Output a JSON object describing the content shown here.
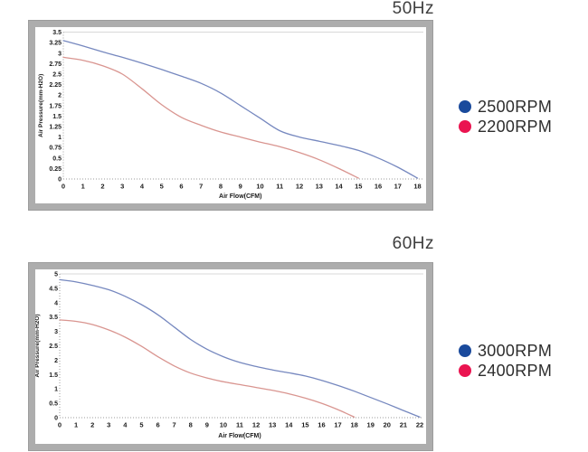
{
  "page": {
    "background": "#ffffff"
  },
  "colors": {
    "curve_blue": "#7688bf",
    "curve_red": "#d99590",
    "legend_blue": "#1a4a9c",
    "legend_red": "#ea1450",
    "grid_line": "#d8d8d8",
    "axis_dotted": "#9b9b9b",
    "tick_text": "#1a1a1a",
    "title_text": "#3e3e3e",
    "frame_border": "#adadad"
  },
  "chart_data": [
    {
      "type": "line",
      "title": "50Hz",
      "xlabel": "Air Flow(CFM)",
      "ylabel": "Air Pressure(mm-H2O)",
      "xlim": [
        0,
        18
      ],
      "ylim": [
        0,
        3.5
      ],
      "grid": "top-line-only",
      "legend_position": "right",
      "x_tick_labels": [
        "0",
        "1",
        "2",
        "3",
        "4",
        "5",
        "6",
        "7",
        "8",
        "9",
        "10",
        "11",
        "12",
        "13",
        "14",
        "15",
        "16",
        "17",
        "18"
      ],
      "x_ticks": [
        0,
        1,
        2,
        3,
        4,
        5,
        6,
        7,
        8,
        9,
        10,
        11,
        12,
        13,
        14,
        15,
        16,
        17,
        18
      ],
      "y_tick_labels": [
        "0",
        "0.25",
        "0.5",
        "0.75",
        "1",
        "1.25",
        "1.5",
        "1.75",
        "2",
        "2.25",
        "2.5",
        "2.75",
        "3",
        "3.25",
        "3.5"
      ],
      "y_ticks": [
        0,
        0.25,
        0.5,
        0.75,
        1,
        1.25,
        1.5,
        1.75,
        2,
        2.25,
        2.5,
        2.75,
        3,
        3.25,
        3.5
      ],
      "legend": [
        {
          "label": "2500RPM",
          "color": "#1a4a9c"
        },
        {
          "label": "2200RPM",
          "color": "#ea1450"
        }
      ],
      "series": [
        {
          "name": "2500RPM",
          "color": "#7688bf",
          "points": [
            [
              0,
              3.3
            ],
            [
              1,
              3.17
            ],
            [
              2,
              3.03
            ],
            [
              3,
              2.9
            ],
            [
              4,
              2.76
            ],
            [
              5,
              2.61
            ],
            [
              6,
              2.45
            ],
            [
              7,
              2.28
            ],
            [
              8,
              2.05
            ],
            [
              9,
              1.75
            ],
            [
              10,
              1.45
            ],
            [
              11,
              1.15
            ],
            [
              12,
              1.0
            ],
            [
              13,
              0.9
            ],
            [
              14,
              0.8
            ],
            [
              15,
              0.68
            ],
            [
              16,
              0.5
            ],
            [
              17,
              0.28
            ],
            [
              18,
              0.02
            ]
          ]
        },
        {
          "name": "2200RPM",
          "color": "#d99590",
          "points": [
            [
              0,
              2.9
            ],
            [
              1,
              2.83
            ],
            [
              2,
              2.7
            ],
            [
              3,
              2.5
            ],
            [
              4,
              2.15
            ],
            [
              5,
              1.77
            ],
            [
              6,
              1.47
            ],
            [
              7,
              1.28
            ],
            [
              8,
              1.12
            ],
            [
              9,
              1.0
            ],
            [
              10,
              0.88
            ],
            [
              11,
              0.77
            ],
            [
              12,
              0.63
            ],
            [
              13,
              0.46
            ],
            [
              14,
              0.25
            ],
            [
              15,
              0.02
            ]
          ]
        }
      ]
    },
    {
      "type": "line",
      "title": "60Hz",
      "xlabel": "Air Flow(CFM)",
      "ylabel": "Air Pressure(mm-H2O)",
      "xlim": [
        0,
        22
      ],
      "ylim": [
        0,
        5
      ],
      "grid": "top-line-only",
      "legend_position": "right",
      "x_tick_labels": [
        "0",
        "1",
        "2",
        "3",
        "4",
        "5",
        "6",
        "7",
        "8",
        "9",
        "10",
        "11",
        "12",
        "13",
        "14",
        "15",
        "16",
        "17",
        "18",
        "19",
        "20",
        "21",
        "22"
      ],
      "x_ticks": [
        0,
        1,
        2,
        3,
        4,
        5,
        6,
        7,
        8,
        9,
        10,
        11,
        12,
        13,
        14,
        15,
        16,
        17,
        18,
        19,
        20,
        21,
        22
      ],
      "y_tick_labels": [
        "0",
        "0.5",
        "1",
        "1.5",
        "2",
        "2.5",
        "3",
        "3.5",
        "4",
        "4.5",
        "5"
      ],
      "y_ticks": [
        0,
        0.5,
        1,
        1.5,
        2,
        2.5,
        3,
        3.5,
        4,
        4.5,
        5
      ],
      "legend": [
        {
          "label": "3000RPM",
          "color": "#1a4a9c"
        },
        {
          "label": "2400RPM",
          "color": "#ea1450"
        }
      ],
      "series": [
        {
          "name": "3000RPM",
          "color": "#7688bf",
          "points": [
            [
              0,
              4.8
            ],
            [
              1,
              4.72
            ],
            [
              2,
              4.6
            ],
            [
              3,
              4.45
            ],
            [
              4,
              4.22
            ],
            [
              5,
              3.93
            ],
            [
              6,
              3.58
            ],
            [
              7,
              3.15
            ],
            [
              8,
              2.72
            ],
            [
              9,
              2.38
            ],
            [
              10,
              2.12
            ],
            [
              11,
              1.92
            ],
            [
              12,
              1.78
            ],
            [
              13,
              1.66
            ],
            [
              14,
              1.56
            ],
            [
              15,
              1.45
            ],
            [
              16,
              1.3
            ],
            [
              17,
              1.12
            ],
            [
              18,
              0.92
            ],
            [
              19,
              0.7
            ],
            [
              20,
              0.48
            ],
            [
              21,
              0.25
            ],
            [
              22,
              0.02
            ]
          ]
        },
        {
          "name": "2400RPM",
          "color": "#d99590",
          "points": [
            [
              0,
              3.4
            ],
            [
              1,
              3.35
            ],
            [
              2,
              3.24
            ],
            [
              3,
              3.05
            ],
            [
              4,
              2.8
            ],
            [
              5,
              2.48
            ],
            [
              6,
              2.12
            ],
            [
              7,
              1.8
            ],
            [
              8,
              1.55
            ],
            [
              9,
              1.38
            ],
            [
              10,
              1.25
            ],
            [
              11,
              1.15
            ],
            [
              12,
              1.05
            ],
            [
              13,
              0.95
            ],
            [
              14,
              0.83
            ],
            [
              15,
              0.68
            ],
            [
              16,
              0.5
            ],
            [
              17,
              0.28
            ],
            [
              18,
              0.02
            ]
          ]
        }
      ]
    }
  ]
}
